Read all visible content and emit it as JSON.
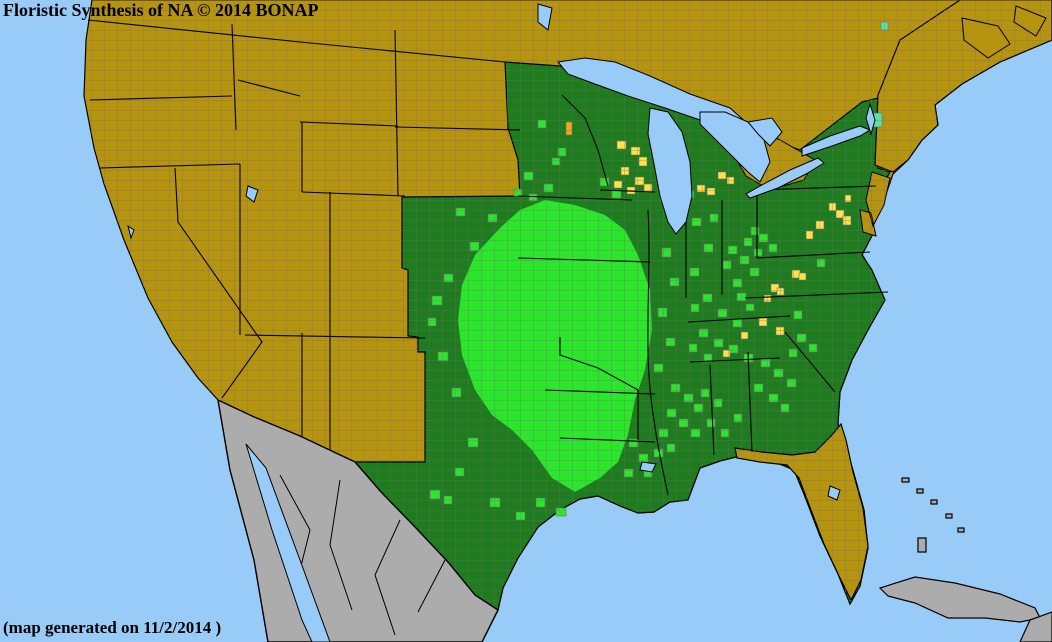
{
  "header": {
    "title": "Floristic Synthesis of NA © 2014 BONAP"
  },
  "footer": {
    "note": "(map generated on 11/2/2014 )"
  },
  "map": {
    "colors": {
      "ocean": "#99CBF8",
      "land_olive": "#B6940F",
      "state_green_dark": "#1E7B1E",
      "county_green_bright": "#2CE62C",
      "county_yellow": "#FFE24A",
      "county_orange": "#F2A71B",
      "county_teal": "#5CE0A5",
      "outside_gray": "#ACACAC",
      "county_line": "#6E6E6E",
      "border_black": "#000000"
    },
    "scatter": {
      "present_counties": {
        "color": "county_green_bright",
        "points": [
          [
            432,
            296,
            10,
            9
          ],
          [
            444,
            274,
            9,
            8
          ],
          [
            428,
            318,
            8,
            8
          ],
          [
            438,
            352,
            10,
            9
          ],
          [
            452,
            388,
            9,
            9
          ],
          [
            468,
            438,
            10,
            9
          ],
          [
            455,
            468,
            9,
            8
          ],
          [
            490,
            498,
            10,
            9
          ],
          [
            516,
            512,
            9,
            8
          ],
          [
            536,
            498,
            9,
            9
          ],
          [
            556,
            508,
            10,
            8
          ],
          [
            430,
            490,
            10,
            9
          ],
          [
            444,
            496,
            8,
            8
          ],
          [
            456,
            208,
            9,
            8
          ],
          [
            470,
            242,
            9,
            9
          ],
          [
            488,
            214,
            9,
            8
          ],
          [
            524,
            172,
            9,
            8
          ],
          [
            544,
            184,
            9,
            8
          ],
          [
            558,
            148,
            8,
            8
          ],
          [
            538,
            120,
            8,
            8
          ],
          [
            552,
            158,
            8,
            7
          ],
          [
            600,
            178,
            9,
            8
          ],
          [
            612,
            190,
            9,
            8
          ],
          [
            660,
            194,
            8,
            7
          ],
          [
            672,
            199,
            8,
            7
          ],
          [
            686,
            191,
            8,
            7
          ],
          [
            662,
            248,
            9,
            9
          ],
          [
            670,
            278,
            9,
            8
          ],
          [
            658,
            308,
            9,
            9
          ],
          [
            666,
            338,
            9,
            8
          ],
          [
            654,
            364,
            9,
            8
          ],
          [
            692,
            218,
            9,
            8
          ],
          [
            704,
            244,
            9,
            8
          ],
          [
            690,
            268,
            9,
            8
          ],
          [
            710,
            214,
            8,
            8
          ],
          [
            728,
            246,
            9,
            8
          ],
          [
            740,
            256,
            9,
            8
          ],
          [
            750,
            268,
            9,
            8
          ],
          [
            733,
            279,
            9,
            8
          ],
          [
            744,
            238,
            8,
            8
          ],
          [
            723,
            261,
            8,
            8
          ],
          [
            754,
            249,
            8,
            7
          ],
          [
            737,
            293,
            9,
            8
          ],
          [
            703,
            294,
            9,
            8
          ],
          [
            718,
            309,
            9,
            8
          ],
          [
            733,
            319,
            9,
            8
          ],
          [
            691,
            304,
            8,
            8
          ],
          [
            746,
            304,
            8,
            7
          ],
          [
            699,
            329,
            9,
            8
          ],
          [
            714,
            339,
            9,
            8
          ],
          [
            729,
            345,
            9,
            8
          ],
          [
            744,
            354,
            9,
            8
          ],
          [
            689,
            344,
            8,
            8
          ],
          [
            704,
            354,
            8,
            8
          ],
          [
            671,
            384,
            9,
            8
          ],
          [
            684,
            394,
            9,
            8
          ],
          [
            667,
            409,
            9,
            8
          ],
          [
            679,
            419,
            9,
            8
          ],
          [
            694,
            404,
            9,
            8
          ],
          [
            701,
            389,
            8,
            8
          ],
          [
            691,
            429,
            9,
            8
          ],
          [
            707,
            419,
            8,
            8
          ],
          [
            714,
            399,
            8,
            8
          ],
          [
            721,
            429,
            8,
            8
          ],
          [
            734,
            414,
            8,
            8
          ],
          [
            659,
            429,
            9,
            8
          ],
          [
            654,
            449,
            9,
            8
          ],
          [
            667,
            444,
            8,
            8
          ],
          [
            629,
            439,
            9,
            8
          ],
          [
            639,
            454,
            9,
            8
          ],
          [
            624,
            469,
            9,
            8
          ],
          [
            644,
            469,
            8,
            8
          ],
          [
            761,
            359,
            9,
            8
          ],
          [
            774,
            369,
            9,
            8
          ],
          [
            787,
            379,
            9,
            8
          ],
          [
            754,
            384,
            9,
            8
          ],
          [
            769,
            394,
            9,
            8
          ],
          [
            781,
            404,
            8,
            8
          ],
          [
            797,
            334,
            9,
            8
          ],
          [
            809,
            344,
            8,
            8
          ],
          [
            789,
            349,
            8,
            8
          ],
          [
            794,
            311,
            8,
            8
          ],
          [
            817,
            259,
            8,
            8
          ],
          [
            759,
            234,
            9,
            8
          ],
          [
            769,
            244,
            8,
            8
          ],
          [
            751,
            227,
            8,
            8
          ],
          [
            514,
            189,
            8,
            7
          ],
          [
            529,
            194,
            8,
            7
          ]
        ]
      },
      "rare_counties": {
        "color": "county_yellow",
        "points": [
          [
            617,
            141,
            9,
            8
          ],
          [
            631,
            147,
            9,
            8
          ],
          [
            639,
            157,
            8,
            9
          ],
          [
            621,
            167,
            8,
            8
          ],
          [
            635,
            177,
            9,
            8
          ],
          [
            644,
            184,
            8,
            8
          ],
          [
            614,
            181,
            8,
            7
          ],
          [
            627,
            187,
            8,
            7
          ],
          [
            697,
            185,
            8,
            7
          ],
          [
            707,
            188,
            8,
            7
          ],
          [
            718,
            172,
            8,
            7
          ],
          [
            727,
            177,
            7,
            7
          ],
          [
            836,
            210,
            8,
            8
          ],
          [
            843,
            216,
            8,
            9
          ],
          [
            829,
            203,
            7,
            8
          ],
          [
            816,
            221,
            8,
            8
          ],
          [
            806,
            231,
            7,
            8
          ],
          [
            845,
            195,
            6,
            7
          ],
          [
            792,
            270,
            8,
            8
          ],
          [
            799,
            273,
            7,
            7
          ],
          [
            771,
            284,
            8,
            8
          ],
          [
            777,
            288,
            7,
            7
          ],
          [
            764,
            295,
            7,
            7
          ],
          [
            759,
            318,
            8,
            8
          ],
          [
            776,
            327,
            8,
            8
          ],
          [
            723,
            350,
            7,
            7
          ],
          [
            741,
            332,
            7,
            7
          ]
        ]
      },
      "orange_counties": {
        "color": "county_orange",
        "points": [
          [
            566,
            122,
            6,
            13
          ]
        ]
      },
      "teal_counties": {
        "color": "county_teal",
        "points": [
          [
            874,
            113,
            8,
            14
          ],
          [
            881,
            22,
            7,
            8
          ]
        ]
      }
    }
  }
}
